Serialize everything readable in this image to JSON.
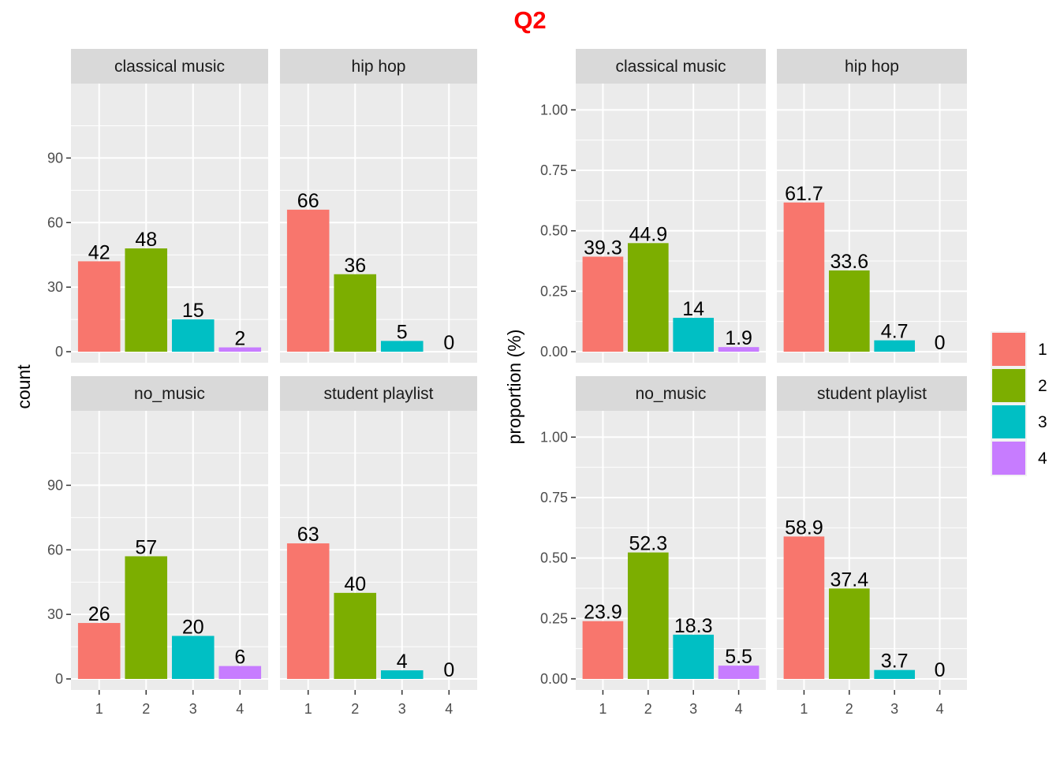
{
  "title": "Q2",
  "colors": {
    "panel_bg": "#EBEBEB",
    "grid": "#FFFFFF",
    "strip_bg": "#D9D9D9",
    "tick": "#333333",
    "fill": {
      "1": "#F8766D",
      "2": "#7CAE00",
      "3": "#00BFC4",
      "4": "#C77CFF"
    }
  },
  "legend": {
    "entries": [
      "1",
      "2",
      "3",
      "4"
    ]
  },
  "chart_data": [
    {
      "type": "bar",
      "ylabel": "count",
      "ylim": [
        0,
        118
      ],
      "y_ticks": [
        0,
        30,
        60,
        90
      ],
      "y_tick_labels": [
        "0",
        "30",
        "60",
        "90"
      ],
      "categories": [
        "1",
        "2",
        "3",
        "4"
      ],
      "facets": [
        {
          "name": "classical music",
          "values": [
            42,
            48,
            15,
            2
          ],
          "labels": [
            "42",
            "48",
            "15",
            "2"
          ]
        },
        {
          "name": "hip hop",
          "values": [
            66,
            36,
            5,
            0
          ],
          "labels": [
            "66",
            "36",
            "5",
            "0"
          ]
        },
        {
          "name": "no_music",
          "values": [
            26,
            57,
            20,
            6
          ],
          "labels": [
            "26",
            "57",
            "20",
            "6"
          ]
        },
        {
          "name": "student playlist",
          "values": [
            63,
            40,
            4,
            0
          ],
          "labels": [
            "63",
            "40",
            "4",
            "0"
          ]
        }
      ]
    },
    {
      "type": "bar",
      "ylabel": "proportion (%)",
      "ylim": [
        0,
        1.05
      ],
      "y_ticks": [
        0,
        0.25,
        0.5,
        0.75,
        1.0
      ],
      "y_tick_labels": [
        "0.00",
        "0.25",
        "0.50",
        "0.75",
        "1.00"
      ],
      "categories": [
        "1",
        "2",
        "3",
        "4"
      ],
      "facets": [
        {
          "name": "classical music",
          "values": [
            0.393,
            0.449,
            0.14,
            0.019
          ],
          "labels": [
            "39.3",
            "44.9",
            "14",
            "1.9"
          ]
        },
        {
          "name": "hip hop",
          "values": [
            0.617,
            0.336,
            0.047,
            0
          ],
          "labels": [
            "61.7",
            "33.6",
            "4.7",
            "0"
          ]
        },
        {
          "name": "no_music",
          "values": [
            0.239,
            0.523,
            0.183,
            0.055
          ],
          "labels": [
            "23.9",
            "52.3",
            "18.3",
            "5.5"
          ]
        },
        {
          "name": "student playlist",
          "values": [
            0.589,
            0.374,
            0.037,
            0
          ],
          "labels": [
            "58.9",
            "37.4",
            "3.7",
            "0"
          ]
        }
      ]
    }
  ]
}
